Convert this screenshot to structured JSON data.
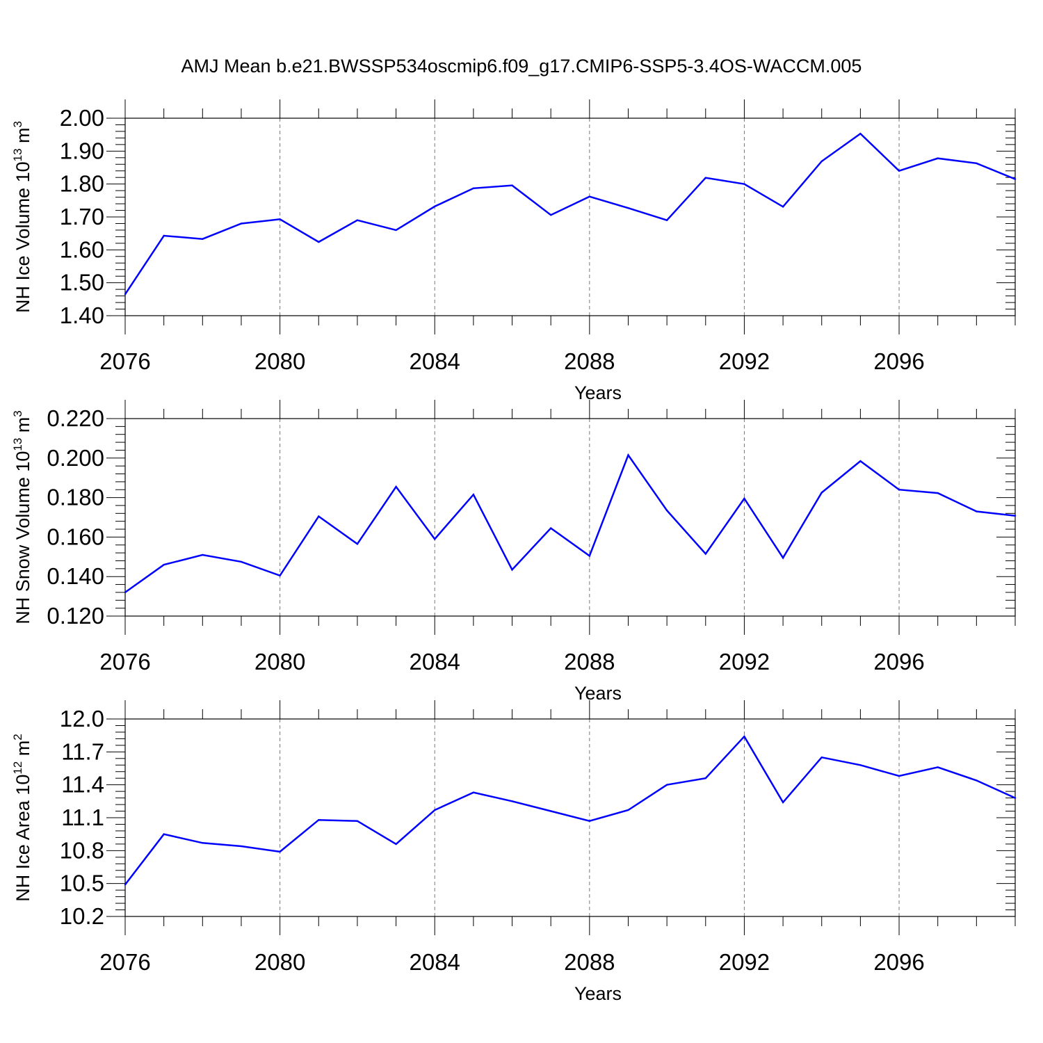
{
  "title": "AMJ Mean b.e21.BWSSP534oscmip6.f09_g17.CMIP6-SSP5-3.4OS-WACCM.005",
  "chart_data": [
    {
      "type": "line",
      "ylabel_main": "NH Ice Volume 10",
      "ylabel_sup": "13",
      "ylabel_unit": " m",
      "ylabel_unit_sup": "3",
      "xlabel": "Years",
      "ylim": [
        1.4,
        2.0
      ],
      "yticks": [
        1.4,
        1.5,
        1.6,
        1.7,
        1.8,
        1.9,
        2.0
      ],
      "ytick_labels": [
        "1.40",
        "1.50",
        "1.60",
        "1.70",
        "1.80",
        "1.90",
        "2.00"
      ],
      "xlim": [
        2076,
        2099
      ],
      "xticks": [
        2076,
        2080,
        2084,
        2088,
        2092,
        2096
      ],
      "xtick_labels": [
        "2076",
        "2080",
        "2084",
        "2088",
        "2092",
        "2096"
      ],
      "color": "#0000ff",
      "series": [
        {
          "name": "NH Ice Volume",
          "x": [
            2076,
            2077,
            2078,
            2079,
            2080,
            2081,
            2082,
            2083,
            2084,
            2085,
            2086,
            2087,
            2088,
            2089,
            2090,
            2091,
            2092,
            2093,
            2094,
            2095,
            2096,
            2097,
            2098,
            2099
          ],
          "values": [
            1.465,
            1.643,
            1.633,
            1.68,
            1.693,
            1.624,
            1.69,
            1.66,
            1.732,
            1.787,
            1.796,
            1.706,
            1.762,
            1.727,
            1.69,
            1.819,
            1.8,
            1.731,
            1.869,
            1.953,
            1.84,
            1.878,
            1.863,
            1.815
          ]
        }
      ]
    },
    {
      "type": "line",
      "ylabel_main": "NH Snow Volume 10",
      "ylabel_sup": "13",
      "ylabel_unit": " m",
      "ylabel_unit_sup": "3",
      "xlabel": "Years",
      "ylim": [
        0.12,
        0.22
      ],
      "yticks": [
        0.12,
        0.14,
        0.16,
        0.18,
        0.2,
        0.22
      ],
      "ytick_labels": [
        "0.120",
        "0.140",
        "0.160",
        "0.180",
        "0.200",
        "0.220"
      ],
      "xlim": [
        2076,
        2099
      ],
      "xticks": [
        2076,
        2080,
        2084,
        2088,
        2092,
        2096
      ],
      "xtick_labels": [
        "2076",
        "2080",
        "2084",
        "2088",
        "2092",
        "2096"
      ],
      "color": "#0000ff",
      "series": [
        {
          "name": "NH Snow Volume",
          "x": [
            2076,
            2077,
            2078,
            2079,
            2080,
            2081,
            2082,
            2083,
            2084,
            2085,
            2086,
            2087,
            2088,
            2089,
            2090,
            2091,
            2092,
            2093,
            2094,
            2095,
            2096,
            2097,
            2098,
            2099
          ],
          "values": [
            0.132,
            0.146,
            0.151,
            0.1475,
            0.1405,
            0.1705,
            0.1565,
            0.1855,
            0.159,
            0.1815,
            0.1435,
            0.1645,
            0.1505,
            0.2015,
            0.1735,
            0.1515,
            0.1795,
            0.1495,
            0.1825,
            0.1985,
            0.184,
            0.1823,
            0.173,
            0.1708
          ]
        }
      ]
    },
    {
      "type": "line",
      "ylabel_main": "NH Ice Area 10",
      "ylabel_sup": "12",
      "ylabel_unit": " m",
      "ylabel_unit_sup": "2",
      "xlabel": "Years",
      "ylim": [
        10.2,
        12.0
      ],
      "yticks": [
        10.2,
        10.5,
        10.8,
        11.1,
        11.4,
        11.7,
        12.0
      ],
      "ytick_labels": [
        "10.2",
        "10.5",
        "10.8",
        "11.1",
        "11.4",
        "11.7",
        "12.0"
      ],
      "xlim": [
        2076,
        2099
      ],
      "xticks": [
        2076,
        2080,
        2084,
        2088,
        2092,
        2096
      ],
      "xtick_labels": [
        "2076",
        "2080",
        "2084",
        "2088",
        "2092",
        "2096"
      ],
      "color": "#0000ff",
      "series": [
        {
          "name": "NH Ice Area",
          "x": [
            2076,
            2077,
            2078,
            2079,
            2080,
            2081,
            2082,
            2083,
            2084,
            2085,
            2086,
            2087,
            2088,
            2089,
            2090,
            2091,
            2092,
            2093,
            2094,
            2095,
            2096,
            2097,
            2098,
            2099
          ],
          "values": [
            10.49,
            10.95,
            10.87,
            10.84,
            10.79,
            11.08,
            11.07,
            10.86,
            11.17,
            11.33,
            11.25,
            11.16,
            11.07,
            11.17,
            11.4,
            11.46,
            11.84,
            11.24,
            11.65,
            11.58,
            11.48,
            11.56,
            11.44,
            11.28
          ]
        }
      ]
    }
  ]
}
